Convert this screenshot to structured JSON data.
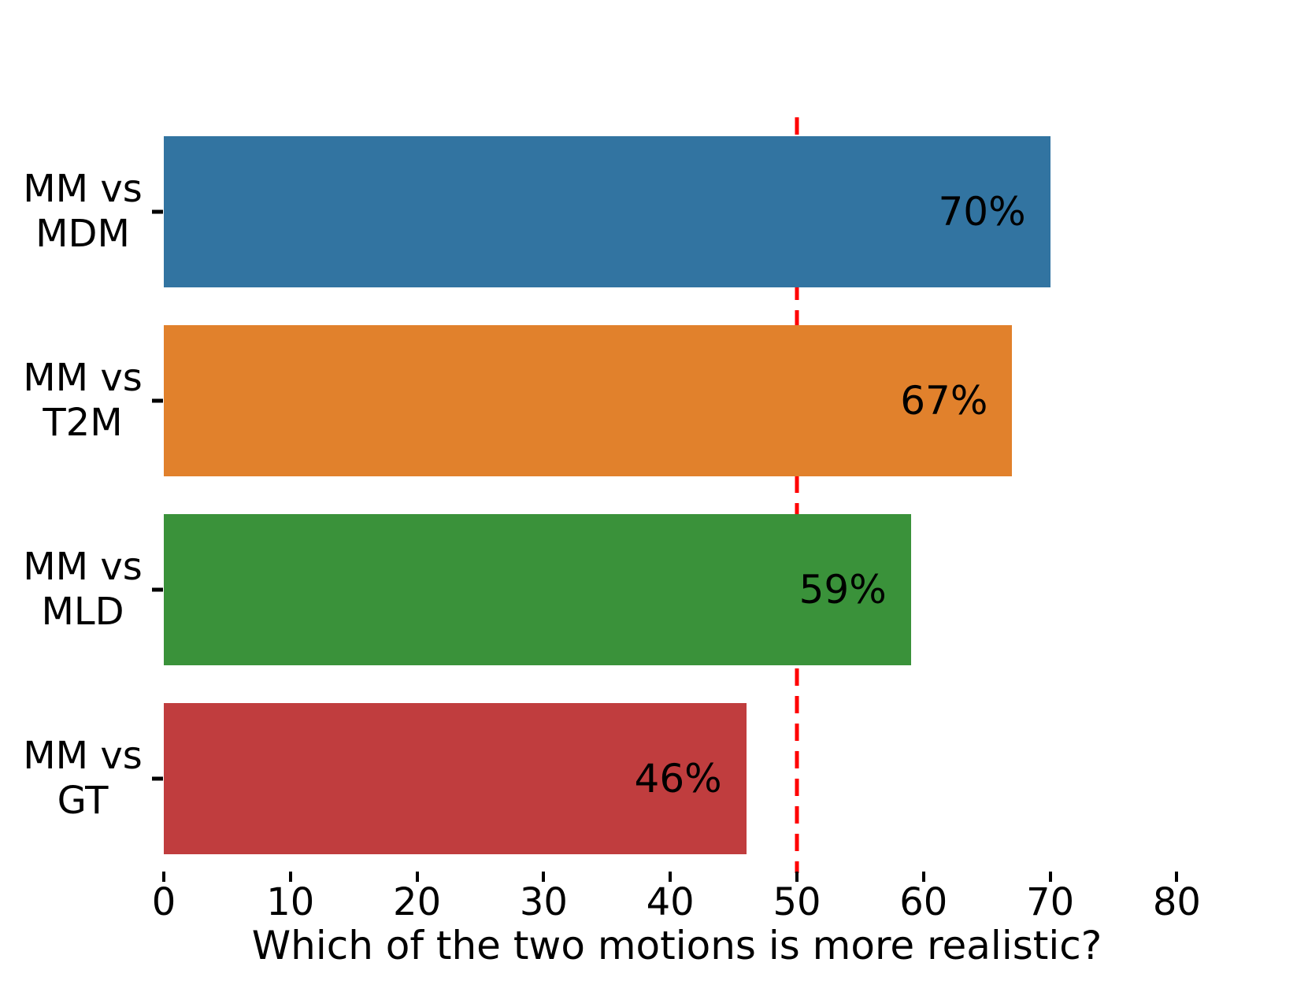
{
  "chart_data": {
    "type": "bar",
    "orientation": "horizontal",
    "xlabel": "Which of the two motions is more realistic?",
    "categories": [
      "MM vs MDM",
      "MM vs T2M",
      "MM vs MLD",
      "MM vs GT"
    ],
    "category_lines": [
      [
        "MM vs",
        "MDM"
      ],
      [
        "MM vs",
        "T2M"
      ],
      [
        "MM vs",
        "MLD"
      ],
      [
        "MM vs",
        "GT"
      ]
    ],
    "values": [
      70,
      67,
      59,
      46
    ],
    "bar_labels": [
      "70%",
      "67%",
      "59%",
      "46%"
    ],
    "bar_colors": [
      "#3274a1",
      "#e1812c",
      "#3a923a",
      "#c03d3e"
    ],
    "reference_line": {
      "x": 50,
      "color": "#ff0000",
      "style": "dashed"
    },
    "xticks": [
      0,
      10,
      20,
      30,
      40,
      50,
      60,
      70,
      80
    ],
    "xtick_labels": [
      "0",
      "10",
      "20",
      "30",
      "40",
      "50",
      "60",
      "70",
      "80"
    ],
    "xlim": [
      0,
      81
    ],
    "grid": false,
    "background": "#ffffff",
    "text_color": "#000000"
  }
}
